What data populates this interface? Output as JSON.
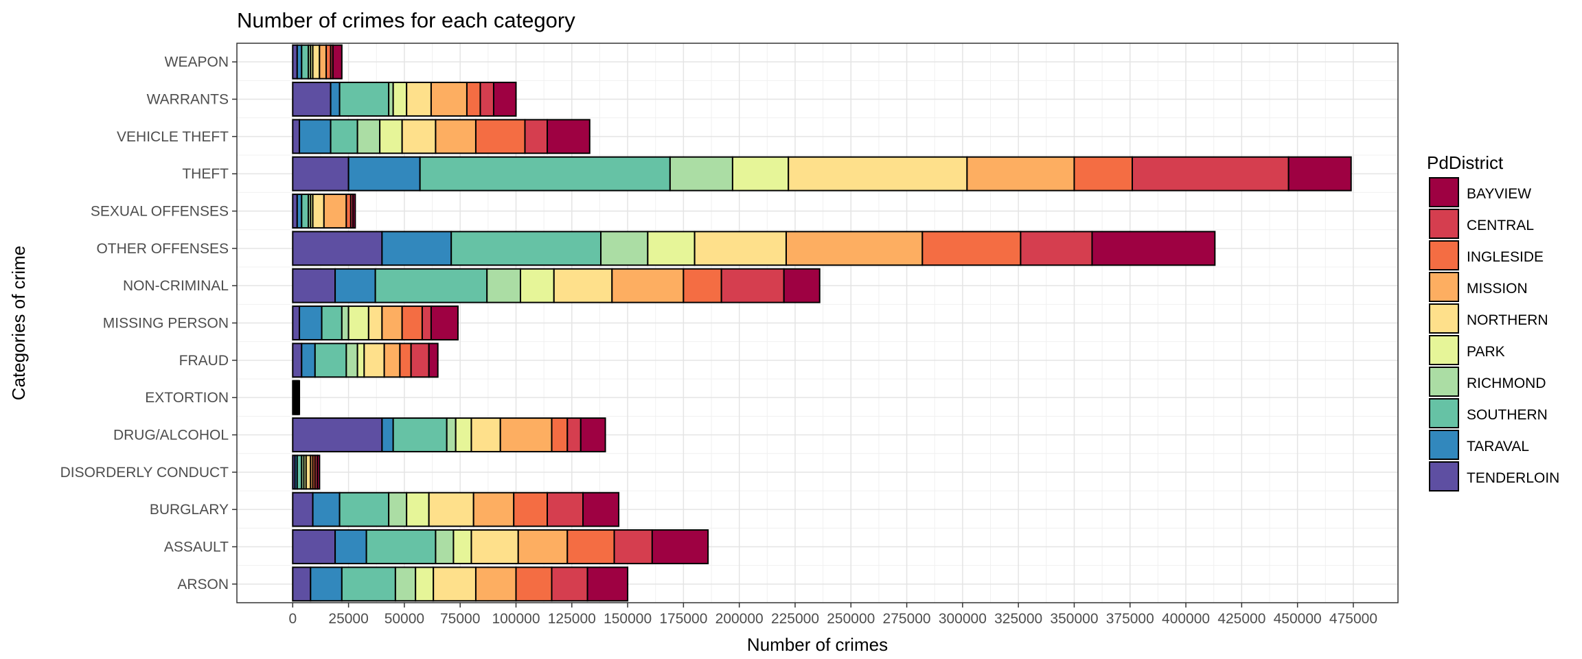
{
  "chart_data": {
    "type": "bar",
    "orientation": "horizontal",
    "stacked": true,
    "title": "Number of crimes for each category",
    "xlabel": "Number of crimes",
    "ylabel": "Categories of crime",
    "xlim": [
      -25000,
      495000
    ],
    "xticks": [
      0,
      25000,
      50000,
      75000,
      100000,
      125000,
      150000,
      175000,
      200000,
      225000,
      250000,
      275000,
      300000,
      325000,
      350000,
      375000,
      400000,
      425000,
      450000,
      475000
    ],
    "xtick_labels": [
      "0",
      "25000",
      "50000",
      "75000",
      "100000",
      "125000",
      "150000",
      "175000",
      "200000",
      "225000",
      "250000",
      "275000",
      "300000",
      "325000",
      "350000",
      "375000",
      "400000",
      "425000",
      "450000",
      "475000"
    ],
    "grid": true,
    "legend": {
      "title": "PdDistrict",
      "position": "right",
      "entries": [
        "BAYVIEW",
        "CENTRAL",
        "INGLESIDE",
        "MISSION",
        "NORTHERN",
        "PARK",
        "RICHMOND",
        "SOUTHERN",
        "TARAVAL",
        "TENDERLOIN"
      ]
    },
    "categories": [
      "ARSON",
      "ASSAULT",
      "BURGLARY",
      "DISORDERLY CONDUCT",
      "DRUG/ALCOHOL",
      "EXTORTION",
      "FRAUD",
      "MISSING PERSON",
      "NON-CRIMINAL",
      "OTHER OFFENSES",
      "SEXUAL OFFENSES",
      "THEFT",
      "VEHICLE THEFT",
      "WARRANTS",
      "WEAPON"
    ],
    "stack_order": [
      "TENDERLOIN",
      "TARAVAL",
      "SOUTHERN",
      "RICHMOND",
      "PARK",
      "NORTHERN",
      "MISSION",
      "INGLESIDE",
      "CENTRAL",
      "BAYVIEW"
    ],
    "series": [
      {
        "name": "TENDERLOIN",
        "color": "#5E4FA2",
        "values": [
          8000,
          19000,
          9000,
          1000,
          40000,
          500,
          4000,
          3000,
          19000,
          40000,
          2000,
          25000,
          3000,
          17000,
          2000
        ]
      },
      {
        "name": "TARAVAL",
        "color": "#3288BD",
        "values": [
          14000,
          14000,
          12000,
          1000,
          5000,
          300,
          6000,
          10000,
          18000,
          31000,
          2000,
          32000,
          14000,
          4000,
          2000
        ]
      },
      {
        "name": "SOUTHERN",
        "color": "#66C2A5",
        "values": [
          24000,
          31000,
          22000,
          2000,
          24000,
          400,
          14000,
          9000,
          50000,
          67000,
          3000,
          112000,
          12000,
          22000,
          3000
        ]
      },
      {
        "name": "RICHMOND",
        "color": "#ABDDA4",
        "values": [
          9000,
          8000,
          8000,
          1000,
          4000,
          200,
          5000,
          3000,
          15000,
          21000,
          1000,
          28000,
          10000,
          2000,
          1000
        ]
      },
      {
        "name": "PARK",
        "color": "#E6F598",
        "values": [
          8000,
          8000,
          10000,
          1000,
          7000,
          200,
          3000,
          9000,
          15000,
          21000,
          1000,
          25000,
          10000,
          6000,
          1000
        ]
      },
      {
        "name": "NORTHERN",
        "color": "#FEE08B",
        "values": [
          19000,
          21000,
          20000,
          2000,
          13000,
          300,
          9000,
          6000,
          26000,
          41000,
          5000,
          80000,
          15000,
          11000,
          3000
        ]
      },
      {
        "name": "MISSION",
        "color": "#FDAE61",
        "values": [
          18000,
          22000,
          18000,
          1000,
          23000,
          300,
          7000,
          9000,
          32000,
          61000,
          10000,
          48000,
          18000,
          16000,
          3000
        ]
      },
      {
        "name": "INGLESIDE",
        "color": "#F46D43",
        "values": [
          16000,
          21000,
          15000,
          1000,
          7000,
          200,
          5000,
          9000,
          17000,
          44000,
          2000,
          26000,
          22000,
          6000,
          2000
        ]
      },
      {
        "name": "CENTRAL",
        "color": "#D53E4F",
        "values": [
          16000,
          17000,
          16000,
          1000,
          6000,
          200,
          8000,
          4000,
          28000,
          32000,
          1000,
          70000,
          10000,
          6000,
          1000
        ]
      },
      {
        "name": "BAYVIEW",
        "color": "#9E0142",
        "values": [
          18000,
          25000,
          16000,
          1000,
          11000,
          400,
          4000,
          12000,
          16000,
          55000,
          1000,
          28000,
          19000,
          10000,
          4000
        ]
      }
    ]
  }
}
